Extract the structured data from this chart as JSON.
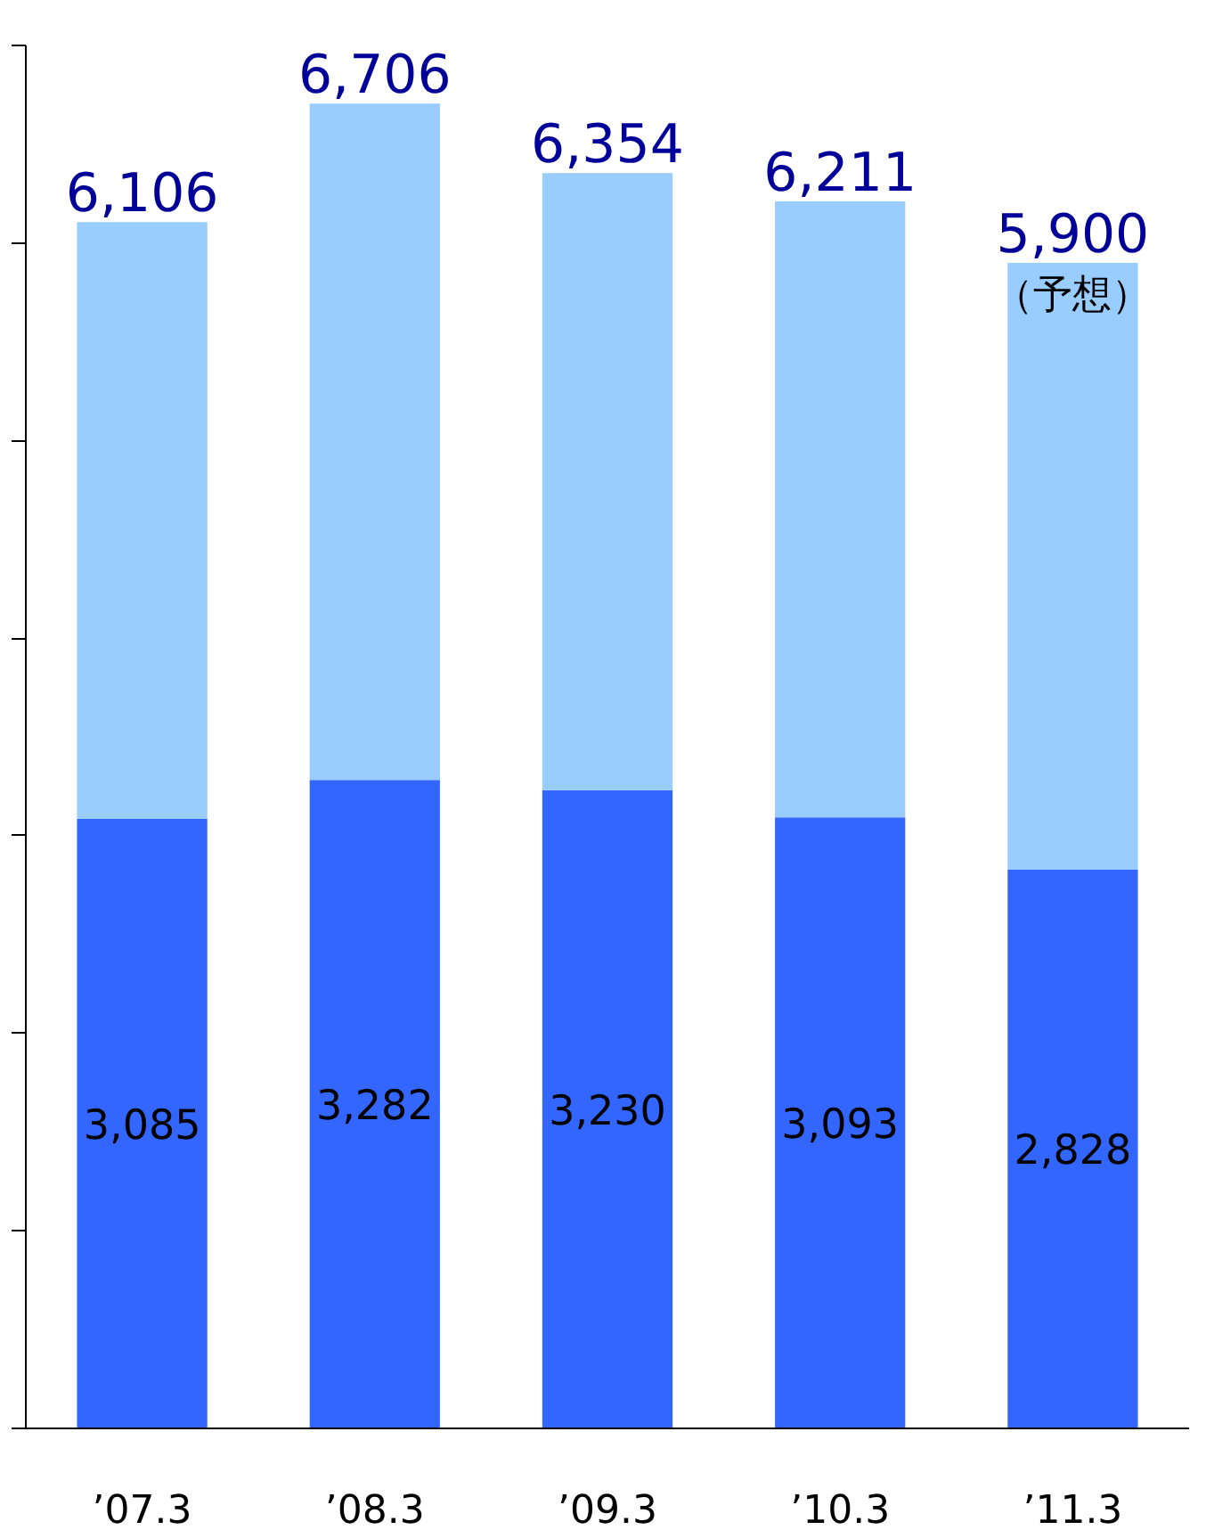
{
  "chart_data": {
    "type": "bar",
    "stacked": true,
    "categories": [
      "’07.3",
      "’08.3",
      "’09.3",
      "’10.3",
      "’11.3"
    ],
    "series": [
      {
        "color": "#3366ff",
        "values": [
          3085,
          3282,
          3230,
          3093,
          2828
        ],
        "value_labels": [
          "3,085",
          "3,282",
          "3,230",
          "3,093",
          "2,828"
        ]
      },
      {
        "color": "#99ccff",
        "values": [
          3021,
          3424,
          3124,
          3118,
          3072
        ]
      }
    ],
    "totals": [
      "6,106",
      "6,706",
      "6,354",
      "6,211",
      "5,900"
    ],
    "annotations": [
      {
        "text": "（予想）",
        "x": "’11.3",
        "y": 5900
      }
    ],
    "ylim": [
      0,
      7000
    ],
    "yticks": [
      {
        "value": 0,
        "label": null
      },
      {
        "value": 1000,
        "label": null
      },
      {
        "value": 2000,
        "label": null
      },
      {
        "value": 3000,
        "label": null
      },
      {
        "value": 4000,
        "label": null
      },
      {
        "value": 5000,
        "label": null
      },
      {
        "value": 6000,
        "label": null
      },
      {
        "value": 7000,
        "label": null
      }
    ],
    "tick_labels": "x",
    "grid": false
  }
}
